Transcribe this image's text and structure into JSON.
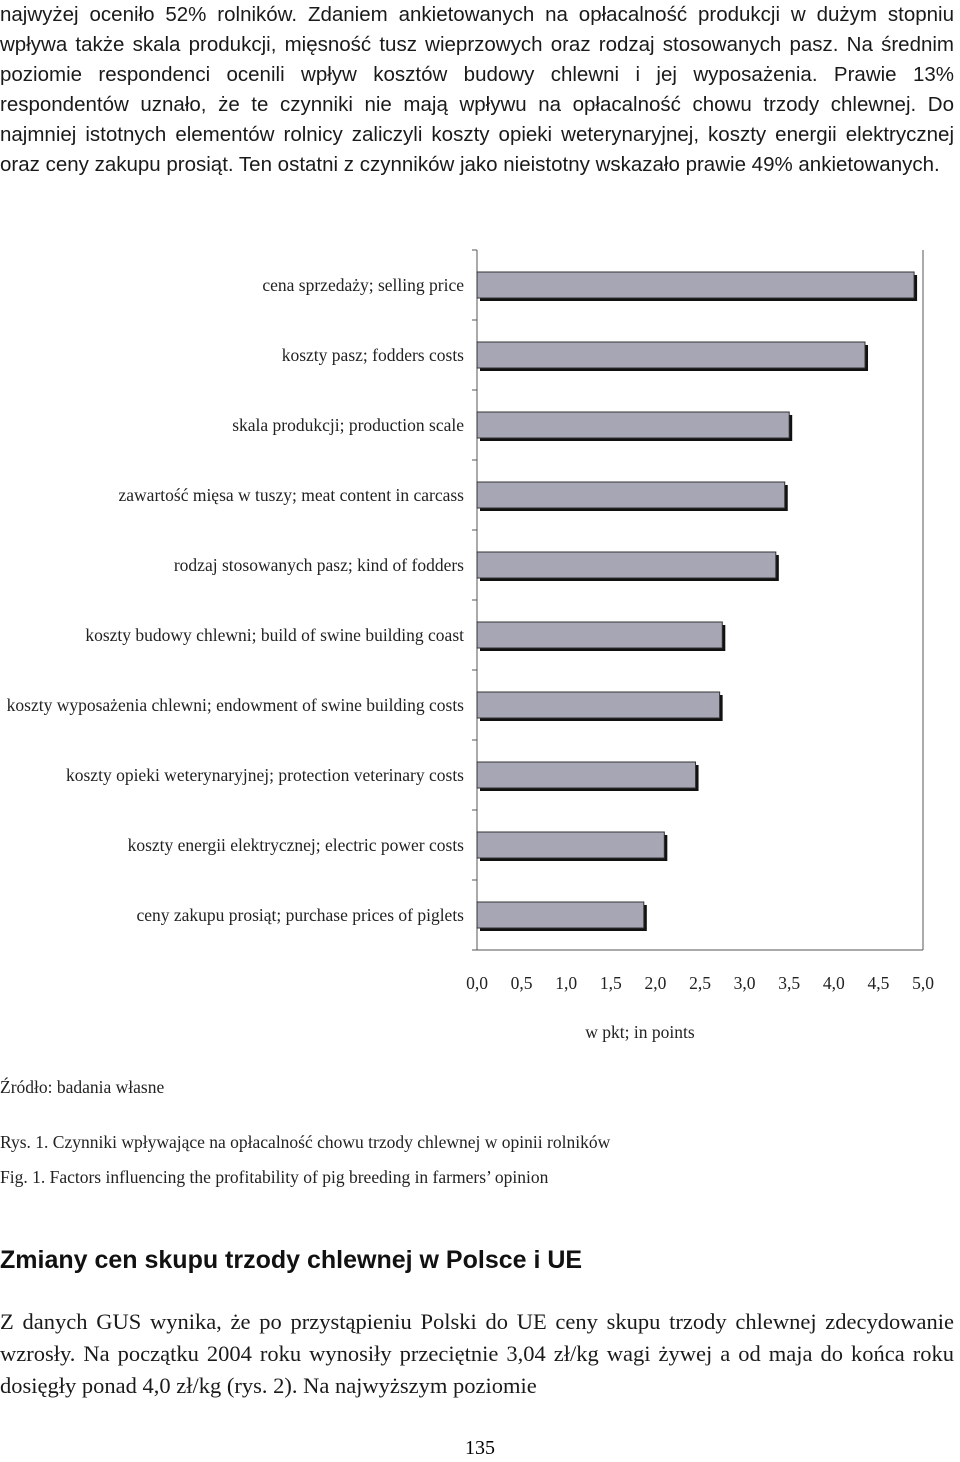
{
  "intro_paragraph": "najwyżej oceniło 52% rolników. Zdaniem ankietowanych na opłacalność produkcji w dużym stopniu wpływa także skala produkcji, mięsność tusz wieprzowych oraz rodzaj stosowanych pasz. Na średnim poziomie respondenci ocenili wpływ kosztów budowy chlewni i jej wyposażenia. Prawie 13% respondentów uznało, że te czynniki nie mają wpływu na opłacalność chowu trzody chlewnej. Do najmniej istotnych elementów rolnicy zaliczyli koszty opieki weterynaryjnej, koszty energii elektrycznej oraz ceny zakupu prosiąt. Ten ostatni z czynników jako nieistotny wskazało prawie 49% ankietowanych.",
  "chart_data": {
    "type": "bar",
    "orientation": "horizontal",
    "categories": [
      "cena sprzedaży; selling price",
      "koszty pasz; fodders costs",
      "skala produkcji; production scale",
      "zawartość mięsa w tuszy; meat content in carcass",
      "rodzaj stosowanych pasz; kind of fodders",
      "koszty budowy chlewni; build of swine building coast",
      "koszty wyposażenia chlewni; endowment of swine building  costs",
      "koszty opieki weterynaryjnej; protection veterinary costs",
      "koszty energii elektrycznej;  electric power costs",
      "ceny zakupu prosiąt; purchase prices of piglets"
    ],
    "values": [
      4.9,
      4.35,
      3.5,
      3.45,
      3.35,
      2.75,
      2.72,
      2.45,
      2.1,
      1.87
    ],
    "xlim": [
      0,
      5
    ],
    "xticks": [
      "0,0",
      "0,5",
      "1,0",
      "1,5",
      "2,0",
      "2,5",
      "3,0",
      "3,5",
      "4,0",
      "4,5",
      "5,0"
    ],
    "xlabel": "w pkt; in points",
    "grid": false,
    "bar_color": "#a6a6b4"
  },
  "source_note": "Źródło: badania własne",
  "caption_pl": "Rys. 1. Czynniki wpływające na opłacalność chowu trzody chlewnej w opinii rolników",
  "caption_en": "Fig. 1. Factors influencing the profitability of pig breeding in farmers’ opinion",
  "section_heading": "Zmiany cen skupu trzody chlewnej w Polsce i UE",
  "section_paragraph": "Z danych GUS wynika, że po przystąpieniu Polski do UE ceny skupu trzody chlewnej zdecydowanie wzrosły. Na początku 2004 roku wynosiły przeciętnie 3,04 zł/kg wagi żywej a od maja do końca roku dosięgły ponad 4,0 zł/kg (rys. 2). Na najwyższym poziomie",
  "page_number": "135"
}
